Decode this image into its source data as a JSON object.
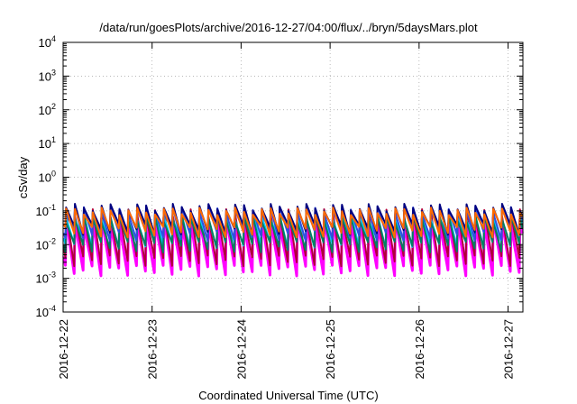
{
  "chart_data": {
    "type": "line",
    "title": "/data/run/goesPlots/archive/2016-12-27/04:00/flux/../bryn/5daysMars.plot",
    "xlabel": "Coordinated Universal Time (UTC)",
    "ylabel": "cSv/day",
    "y_scale": "log",
    "ylim": [
      0.0001,
      10000
    ],
    "xlim": [
      "2016-12-22 00:00",
      "2016-12-27 04:00"
    ],
    "x_ticks": [
      "2016-12-22",
      "2016-12-23",
      "2016-12-24",
      "2016-12-25",
      "2016-12-26",
      "2016-12-27"
    ],
    "y_ticks": [
      {
        "value": 0.0001,
        "mantissa": "10",
        "exponent": "-4"
      },
      {
        "value": 0.001,
        "mantissa": "10",
        "exponent": "-3"
      },
      {
        "value": 0.01,
        "mantissa": "10",
        "exponent": "-2"
      },
      {
        "value": 0.1,
        "mantissa": "10",
        "exponent": "-1"
      },
      {
        "value": 1,
        "mantissa": "10",
        "exponent": "0"
      },
      {
        "value": 10,
        "mantissa": "10",
        "exponent": "1"
      },
      {
        "value": 100,
        "mantissa": "10",
        "exponent": "2"
      },
      {
        "value": 1000,
        "mantissa": "10",
        "exponent": "3"
      },
      {
        "value": 10000,
        "mantissa": "10",
        "exponent": "4"
      }
    ],
    "grid": true,
    "pattern": {
      "cycle_hours": 2.4,
      "phase_hours": 0.6,
      "note": "sawtooth: rapid rise to peak then exponential decay each cycle"
    },
    "series": [
      {
        "color": "#ff00ff",
        "peak": 0.05,
        "min": 0.0018
      },
      {
        "color": "#b0003a",
        "peak": 0.09,
        "min": 0.0035
      },
      {
        "color": "#00c8ff",
        "peak": 0.07,
        "min": 0.012
      },
      {
        "color": "#008060",
        "peak": 0.06,
        "min": 0.009
      },
      {
        "color": "#3050e0",
        "peak": 0.11,
        "min": 0.02
      },
      {
        "color": "#000080",
        "peak": 0.13,
        "min": 0.03
      },
      {
        "color": "#ff6a00",
        "peak": 0.1,
        "min": 0.025
      }
    ]
  }
}
